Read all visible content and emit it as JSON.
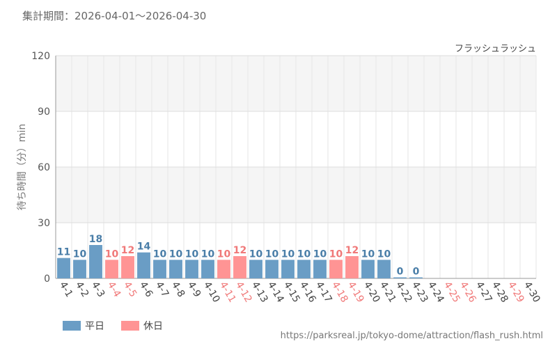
{
  "header": {
    "period": "集計期間：2026-04-01～2026-04-30"
  },
  "chart_data": {
    "type": "bar",
    "title": "フラッシュラッシュ",
    "ylabel": "待ち時間（分）min",
    "ylim": [
      0,
      120
    ],
    "yticks": [
      0,
      30,
      60,
      90,
      120
    ],
    "categories": [
      "4-1",
      "4-2",
      "4-3",
      "4-4",
      "4-5",
      "4-6",
      "4-7",
      "4-8",
      "4-9",
      "4-10",
      "4-11",
      "4-12",
      "4-13",
      "4-14",
      "4-15",
      "4-16",
      "4-17",
      "4-18",
      "4-19",
      "4-20",
      "4-21",
      "4-22",
      "4-23",
      "4-24",
      "4-25",
      "4-26",
      "4-27",
      "4-28",
      "4-29",
      "4-30"
    ],
    "values": [
      11,
      10,
      18,
      10,
      12,
      14,
      10,
      10,
      10,
      10,
      10,
      12,
      10,
      10,
      10,
      10,
      10,
      10,
      12,
      10,
      10,
      0,
      0,
      null,
      null,
      null,
      null,
      null,
      null,
      null
    ],
    "day_type": [
      "weekday",
      "weekday",
      "weekday",
      "holiday",
      "holiday",
      "weekday",
      "weekday",
      "weekday",
      "weekday",
      "weekday",
      "holiday",
      "holiday",
      "weekday",
      "weekday",
      "weekday",
      "weekday",
      "weekday",
      "holiday",
      "holiday",
      "weekday",
      "weekday",
      "weekday",
      "weekday",
      "weekday",
      "holiday",
      "holiday",
      "weekday",
      "weekday",
      "holiday",
      "weekday"
    ],
    "legend": [
      {
        "key": "weekday",
        "label": "平日",
        "color": "#6a9dc5"
      },
      {
        "key": "holiday",
        "label": "休日",
        "color": "#ff9494"
      }
    ],
    "label_colors": {
      "weekday": "#4a7ea8",
      "holiday": "#f07878"
    },
    "tick_colors": {
      "weekday": "#444444",
      "holiday": "#f07878"
    },
    "grid": true
  },
  "footer": {
    "source": "https://parksreal.jp/tokyo-dome/attraction/flash_rush.html"
  }
}
